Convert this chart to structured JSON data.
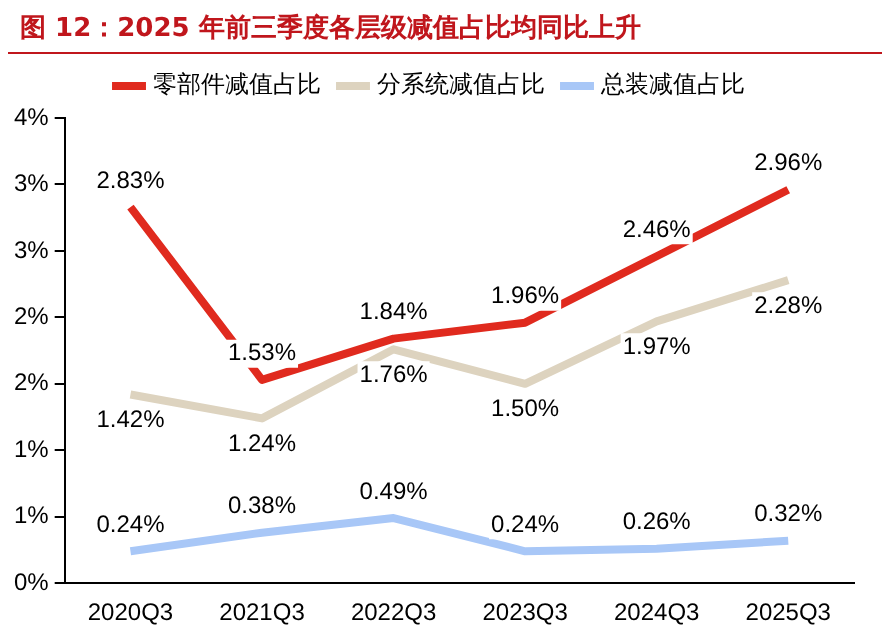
{
  "chart_data": {
    "type": "line",
    "title": "图 12：2025 年前三季度各层级减值占比均同比上升",
    "categories": [
      "2020Q3",
      "2021Q3",
      "2022Q3",
      "2023Q3",
      "2024Q3",
      "2025Q3"
    ],
    "series": [
      {
        "name": "零部件减值占比",
        "color": "#e02a1e",
        "values": [
          2.83,
          1.53,
          1.84,
          1.96,
          2.46,
          2.96
        ],
        "value_labels": [
          "2.83%",
          "1.53%",
          "1.84%",
          "1.96%",
          "2.46%",
          "2.96%"
        ]
      },
      {
        "name": "分系统减值占比",
        "color": "#ddd3bf",
        "values": [
          1.42,
          1.24,
          1.76,
          1.5,
          1.97,
          2.28
        ],
        "value_labels": [
          "1.42%",
          "1.24%",
          "1.76%",
          "1.50%",
          "1.97%",
          "2.28%"
        ]
      },
      {
        "name": "总装减值占比",
        "color": "#a8c7f7",
        "values": [
          0.24,
          0.38,
          0.49,
          0.24,
          0.26,
          0.32
        ],
        "value_labels": [
          "0.24%",
          "0.38%",
          "0.49%",
          "0.24%",
          "0.26%",
          "0.32%"
        ]
      }
    ],
    "ylim": [
      0,
      3.5
    ],
    "yticks": [
      {
        "value": 0,
        "label": "0%"
      },
      {
        "value": 0.5,
        "label": "1%"
      },
      {
        "value": 1,
        "label": "1%"
      },
      {
        "value": 1.5,
        "label": "2%"
      },
      {
        "value": 2,
        "label": "2%"
      },
      {
        "value": 2.5,
        "label": "3%"
      },
      {
        "value": 3,
        "label": "3%"
      },
      {
        "value": 3.5,
        "label": "4%"
      }
    ],
    "grid": false,
    "legend": "top",
    "marker": "none",
    "line_style": "solid"
  }
}
